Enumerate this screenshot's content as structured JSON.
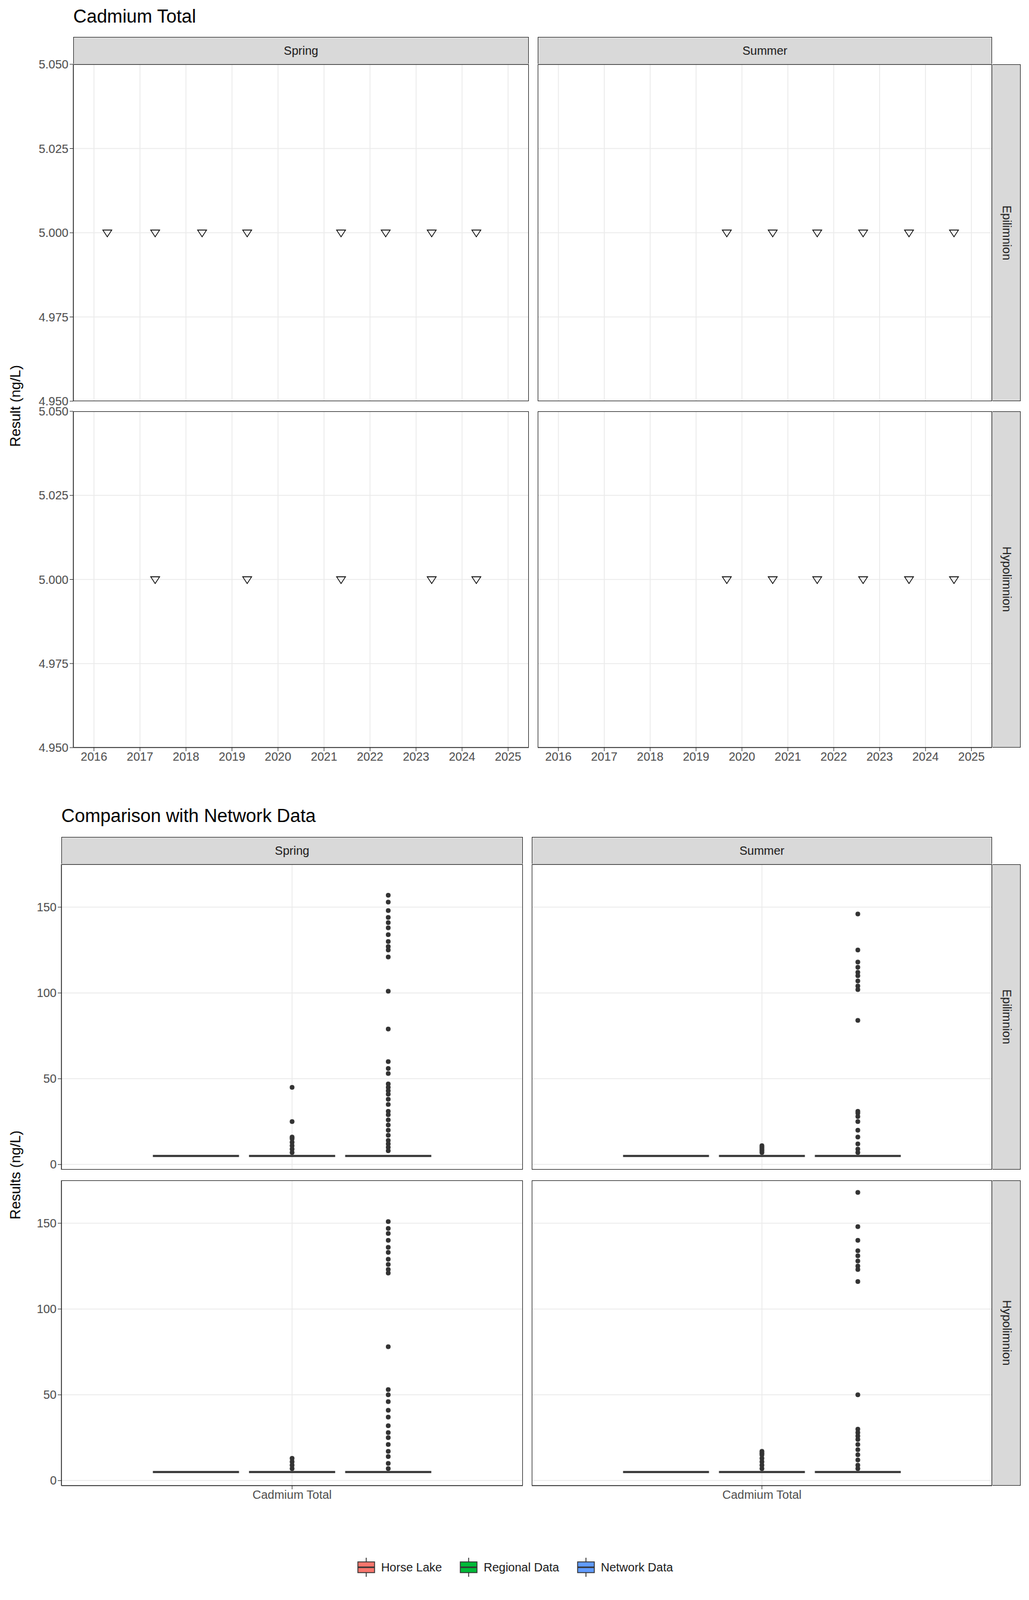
{
  "chart_data": [
    {
      "type": "scatter",
      "title": "Cadmium Total",
      "y_label": "Result (ng/L)",
      "marker": "triangle-down",
      "color": "#000000",
      "grid": true,
      "xlim": [
        2015.55,
        2025.45
      ],
      "xticks": [
        2016,
        2017,
        2018,
        2019,
        2020,
        2021,
        2022,
        2023,
        2024,
        2025
      ],
      "ylim": [
        4.95,
        5.05
      ],
      "yticks": [
        {
          "value": 4.95,
          "label": "4.950"
        },
        {
          "value": 4.975,
          "label": "4.975"
        },
        {
          "value": 5,
          "label": "5.000"
        },
        {
          "value": 5.025,
          "label": "5.025"
        },
        {
          "value": 5.05,
          "label": "5.050"
        }
      ],
      "columns": [
        "Spring",
        "Summer"
      ],
      "rows": [
        "Epilimnion",
        "Hypolimnion"
      ],
      "panels": [
        [
          {
            "x": [
              2016.29,
              2017.33,
              2018.35,
              2019.33,
              2021.37,
              2022.34,
              2023.34,
              2024.31
            ],
            "values": [
              5,
              5,
              5,
              5,
              5,
              5,
              5,
              5
            ]
          },
          {
            "x": [
              2019.67,
              2020.67,
              2021.64,
              2022.64,
              2023.64,
              2024.62
            ],
            "values": [
              5,
              5,
              5,
              5,
              5,
              5
            ]
          }
        ],
        [
          {
            "x": [
              2017.33,
              2019.33,
              2021.37,
              2023.34,
              2024.31
            ],
            "values": [
              5,
              5,
              5,
              5,
              5
            ]
          },
          {
            "x": [
              2019.67,
              2020.67,
              2021.64,
              2022.64,
              2023.64,
              2024.62
            ],
            "values": [
              5,
              5,
              5,
              5,
              5,
              5
            ]
          }
        ]
      ]
    },
    {
      "type": "box",
      "title": "Comparison with Network Data",
      "y_label": "Results (ng/L)",
      "grid": true,
      "legend": "bottom",
      "categories": [
        "Cadmium Total"
      ],
      "ylim": [
        -3,
        175
      ],
      "yticks": [
        0,
        50,
        100,
        150
      ],
      "columns": [
        "Spring",
        "Summer"
      ],
      "rows": [
        "Epilimnion",
        "Hypolimnion"
      ],
      "series": [
        {
          "name": "Horse Lake",
          "color": "#F8766D"
        },
        {
          "name": "Regional Data",
          "color": "#00BA38"
        },
        {
          "name": "Network Data",
          "color": "#619CFF"
        }
      ],
      "panels": [
        [
          [
            {
              "min": 5,
              "q1": 5,
              "median": 5,
              "q3": 5,
              "max": 5,
              "outliers": []
            },
            {
              "min": 5,
              "q1": 5,
              "median": 5,
              "q3": 5,
              "max": 5,
              "outliers": [
                45,
                25,
                16,
                15,
                13,
                11,
                9,
                7
              ]
            },
            {
              "min": 5,
              "q1": 5,
              "median": 5,
              "q3": 5,
              "max": 5,
              "outliers": [
                157,
                153,
                148,
                144,
                141,
                138,
                134,
                130,
                127,
                125,
                121,
                101,
                79,
                60,
                56,
                53,
                47,
                45,
                43,
                41,
                38,
                35,
                31,
                29,
                26,
                23,
                20,
                17,
                14,
                12,
                10,
                8
              ]
            }
          ],
          [
            {
              "min": 5,
              "q1": 5,
              "median": 5,
              "q3": 5,
              "max": 5,
              "outliers": []
            },
            {
              "min": 5,
              "q1": 5,
              "median": 5,
              "q3": 5,
              "max": 5,
              "outliers": [
                11,
                10,
                9,
                8,
                7
              ]
            },
            {
              "min": 5,
              "q1": 5,
              "median": 5,
              "q3": 5,
              "max": 5,
              "outliers": [
                146,
                125,
                118,
                115,
                112,
                110,
                107,
                104,
                102,
                84,
                31,
                30,
                28,
                25,
                20,
                16,
                12,
                9,
                7
              ]
            }
          ]
        ],
        [
          [
            {
              "min": 5,
              "q1": 5,
              "median": 5,
              "q3": 5,
              "max": 5,
              "outliers": []
            },
            {
              "min": 5,
              "q1": 5,
              "median": 5,
              "q3": 5,
              "max": 5,
              "outliers": [
                13,
                11,
                9,
                7
              ]
            },
            {
              "min": 5,
              "q1": 5,
              "median": 5,
              "q3": 5,
              "max": 5,
              "outliers": [
                151,
                147,
                144,
                140,
                136,
                133,
                129,
                126,
                123,
                121,
                78,
                53,
                50,
                46,
                41,
                37,
                32,
                28,
                25,
                21,
                17,
                14,
                10,
                7
              ]
            }
          ],
          [
            {
              "min": 5,
              "q1": 5,
              "median": 5,
              "q3": 5,
              "max": 5,
              "outliers": []
            },
            {
              "min": 5,
              "q1": 5,
              "median": 5,
              "q3": 5,
              "max": 5,
              "outliers": [
                17,
                16,
                15,
                13,
                11,
                9,
                7
              ]
            },
            {
              "min": 5,
              "q1": 5,
              "median": 5,
              "q3": 5,
              "max": 5,
              "outliers": [
                168,
                148,
                140,
                134,
                131,
                128,
                125,
                123,
                116,
                50,
                30,
                28,
                26,
                24,
                21,
                18,
                15,
                12,
                9,
                7
              ]
            }
          ]
        ]
      ]
    }
  ]
}
